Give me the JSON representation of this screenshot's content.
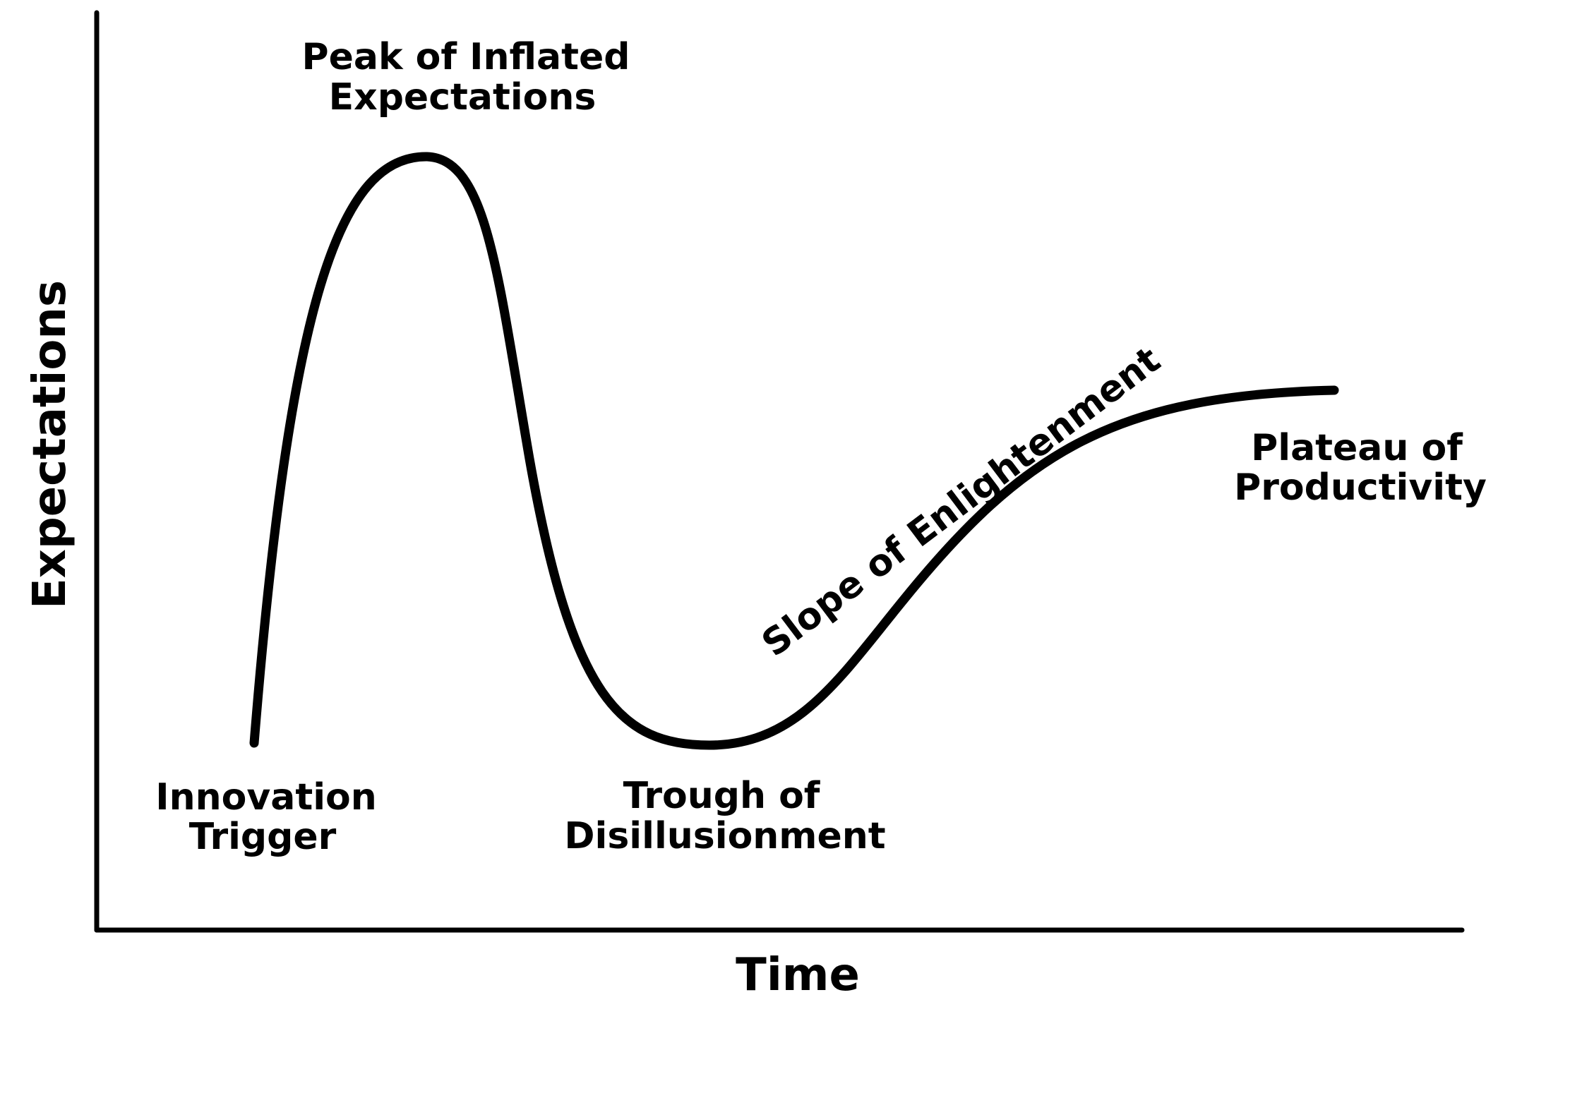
{
  "colors": {
    "ink": "#000000",
    "background": "#ffffff"
  },
  "axes": {
    "x_label": "Time",
    "y_label": "Expectations"
  },
  "stages": {
    "innovation_trigger": [
      "Innovation",
      "Trigger"
    ],
    "peak": [
      "Peak of Inflated",
      "Expectations"
    ],
    "trough": [
      "Trough of",
      "Disillusionment"
    ],
    "slope": "Slope of Enlightenment",
    "plateau": [
      "Plateau of",
      "Productivity"
    ]
  }
}
